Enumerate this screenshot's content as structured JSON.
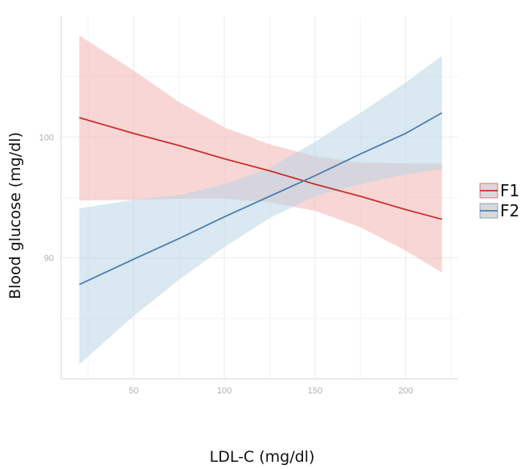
{
  "chart_data": {
    "type": "line",
    "title": "",
    "xlabel": "LDL-C (mg/dl)",
    "ylabel": "Blood glucose (mg/dl)",
    "xlim": [
      10,
      229
    ],
    "ylim": [
      80,
      110
    ],
    "x_ticks": [
      50,
      100,
      150,
      200
    ],
    "y_ticks": [
      90,
      100
    ],
    "grid": true,
    "legend_position": "right",
    "x": [
      20,
      50,
      75,
      100,
      125,
      150,
      175,
      200,
      220
    ],
    "series": [
      {
        "name": "F1",
        "color": "#c8302c",
        "band_color": "#f4b4b4",
        "values": [
          101.6,
          100.3,
          99.3,
          98.2,
          97.2,
          96.1,
          95.1,
          94.0,
          93.2
        ],
        "lower": [
          94.75,
          94.8,
          94.9,
          94.9,
          94.6,
          93.9,
          92.55,
          90.6,
          88.8
        ],
        "upper": [
          108.4,
          105.5,
          102.9,
          100.8,
          99.4,
          98.4,
          97.9,
          97.8,
          97.8
        ]
      },
      {
        "name": "F2",
        "color": "#4a7fb0",
        "band_color": "#b9d6e6",
        "values": [
          87.8,
          89.9,
          91.6,
          93.4,
          95.1,
          96.8,
          98.6,
          100.3,
          102.0
        ],
        "lower": [
          81.2,
          85.2,
          88.2,
          90.9,
          93.3,
          95.1,
          96.1,
          96.9,
          97.35
        ],
        "upper": [
          94.1,
          94.8,
          95.2,
          96.1,
          97.45,
          99.6,
          102.0,
          104.5,
          106.7
        ]
      }
    ]
  }
}
